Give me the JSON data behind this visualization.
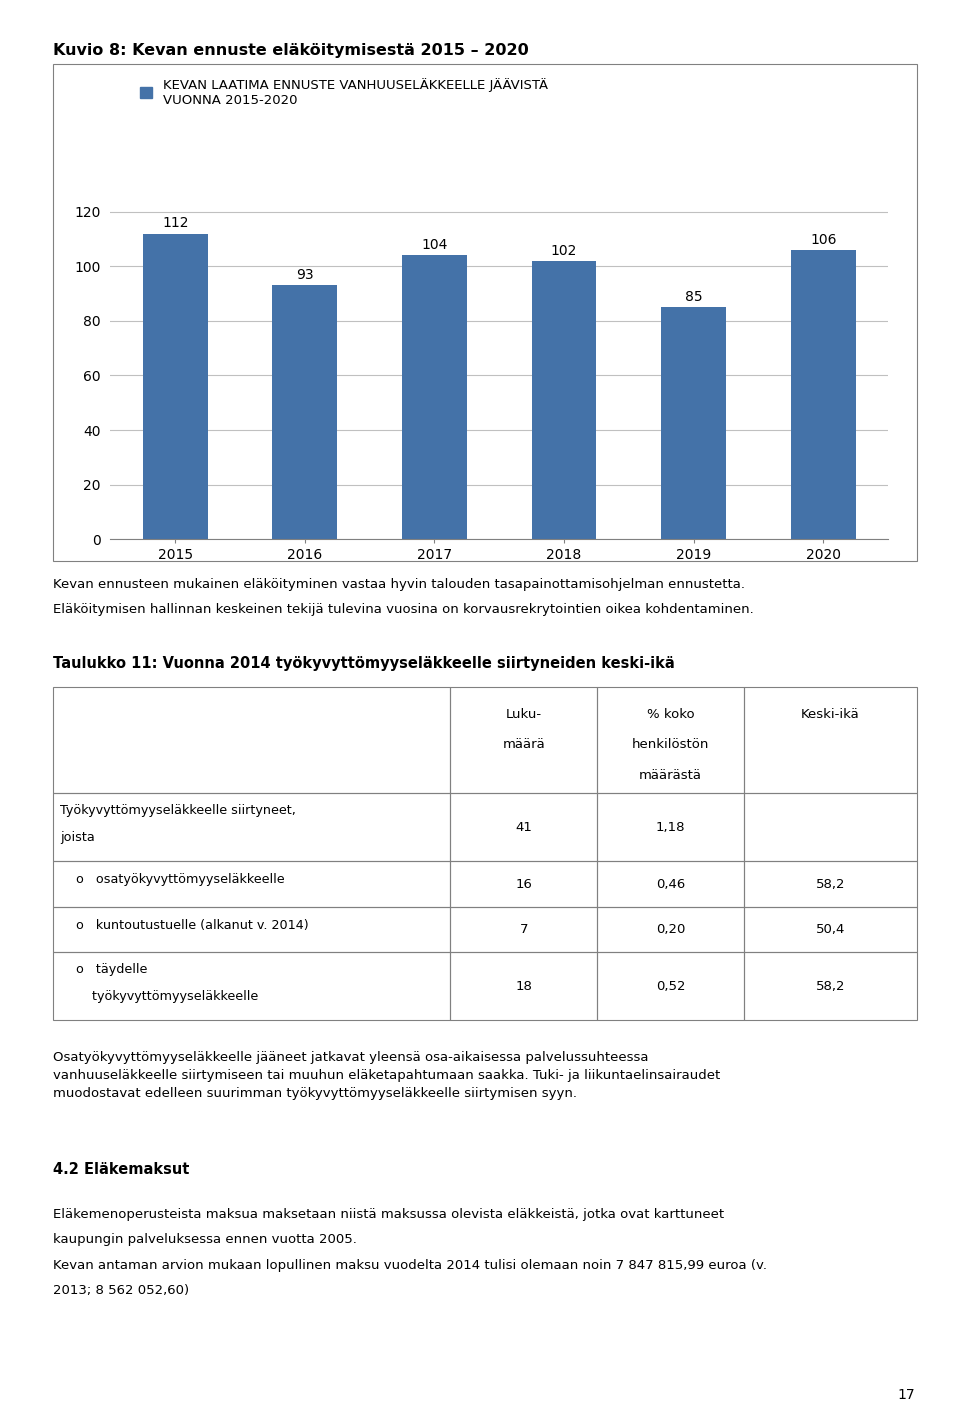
{
  "title": "Kuvio 8: Kevan ennuste eläköitymisestä 2015 – 2020",
  "legend_label": "KEVAN LAATIMA ENNUSTE VANHUUSELÄKKEELLE JÄÄVISTÄ\nVUONNA 2015-2020",
  "categories": [
    "2015",
    "2016",
    "2017",
    "2018",
    "2019",
    "2020"
  ],
  "values": [
    112,
    93,
    104,
    102,
    85,
    106
  ],
  "bar_color": "#4472a8",
  "ylim": [
    0,
    130
  ],
  "yticks": [
    0,
    20,
    40,
    60,
    80,
    100,
    120
  ],
  "paragraph1_line1": "Kevan ennusteen mukainen eläköityminen vastaa hyvin talouden tasapainottamisohjelman ennustetta.",
  "paragraph1_line2": "Eläköitymisen hallinnan keskeinen tekijä tulevina vuosina on korvausrekrytointien oikea kohdentaminen.",
  "table_title": "Taulukko 11: Vuonna 2014 työkyvyttömyyseläkkeelle siirtyneiden keski-ikä",
  "col_header_row1": [
    "",
    "Luku-",
    "% koko",
    "Keski-ikä"
  ],
  "col_header_row2": [
    "",
    "määrä",
    "henkilöstön",
    ""
  ],
  "col_header_row3": [
    "",
    "",
    "määrästä",
    ""
  ],
  "table_row1_label1": "Työkyvyttömyyseläkkeelle siirtyneet,",
  "table_row1_label2": "joista",
  "table_row1_vals": [
    "41",
    "1,18",
    ""
  ],
  "table_row2_label": "    o   osatyökyvyttömyyseläkkeelle",
  "table_row2_vals": [
    "16",
    "0,46",
    "58,2"
  ],
  "table_row3_label": "    o   kuntoutustuelle (alkanut v. 2014)",
  "table_row3_vals": [
    "7",
    "0,20",
    "50,4"
  ],
  "table_row4_label1": "    o   täydelle",
  "table_row4_label2": "        työkyvyttömyyseläkkeelle",
  "table_row4_vals": [
    "18",
    "0,52",
    "58,2"
  ],
  "paragraph2": "Osatyökyvyttömyyseläkkeelle jääneet jatkavat yleensä osa-aikaisessa palvelussuhteessa\nvanhuuseläkkeelle siirtymiseen tai muuhun eläketapahtumaan saakka. Tuki- ja liikuntaelinsairaudet\nmuodostavat edelleen suurimman työkyvyttömyyseläkkeelle siirtymisen syyn.",
  "section_header": "4.2 Eläkemaksut",
  "paragraph3_line1": "Eläkemenoperusteista maksua maksetaan niistä maksussa olevista eläkkeistä, jotka ovat karttuneet",
  "paragraph3_line2": "kaupungin palveluksessa ennen vuotta 2005.",
  "paragraph3_line3": "Kevan antaman arvion mukaan lopullinen maksu vuodelta 2014 tulisi olemaan noin 7 847 815,99 euroa (v.",
  "paragraph3_line4": "2013; 8 562 052,60)",
  "page_number": "17",
  "background_color": "#ffffff",
  "text_color": "#000000",
  "grid_color": "#c0c0c0",
  "border_color": "#808080"
}
